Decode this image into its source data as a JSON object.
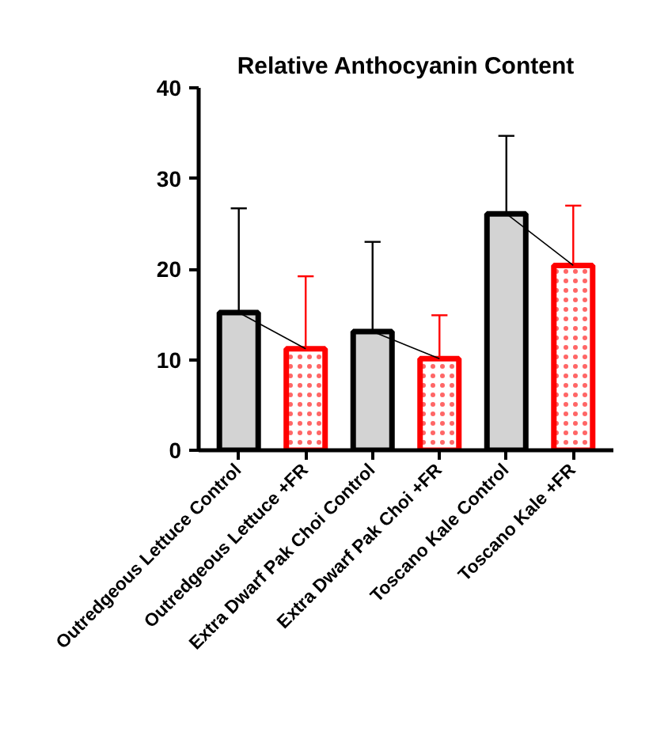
{
  "chart_data": {
    "type": "bar",
    "title": "Relative Anthocyanin Content",
    "categories": [
      "Outredgeous Lettuce Control",
      "Outredgeous Lettuce +FR",
      "Extra Dwarf Pak Choi Control",
      "Extra Dwarf Pak Choi +FR",
      "Toscano Kale Control",
      "Toscano Kale +FR"
    ],
    "series": [
      {
        "color": "#000000",
        "values": [
          15.2,
          null,
          13.1,
          null,
          26.1,
          null
        ],
        "errors": [
          11.5,
          null,
          9.9,
          null,
          8.6,
          null
        ]
      },
      {
        "color": "#ff0000",
        "values": [
          null,
          11.2,
          null,
          10.1,
          null,
          20.4
        ],
        "errors": [
          null,
          8.0,
          null,
          4.8,
          null,
          6.6
        ]
      },
      {
        "type": "line",
        "color": "#000000",
        "x": [
          "Outredgeous Lettuce Control",
          "Outredgeous Lettuce +FR"
        ],
        "values": [
          15.2,
          11.2
        ]
      },
      {
        "type": "line",
        "color": "#000000",
        "x": [
          "Extra Dwarf Pak Choi Control",
          "Extra Dwarf Pak Choi +FR"
        ],
        "values": [
          13.1,
          10.1
        ]
      },
      {
        "type": "line",
        "color": "#000000",
        "x": [
          "Toscano Kale Control",
          "Toscano Kale +FR"
        ],
        "values": [
          26.1,
          20.4
        ]
      }
    ],
    "ylim": [
      0,
      40
    ],
    "yticks": [
      0,
      10,
      20,
      30,
      40
    ],
    "grid": false
  }
}
